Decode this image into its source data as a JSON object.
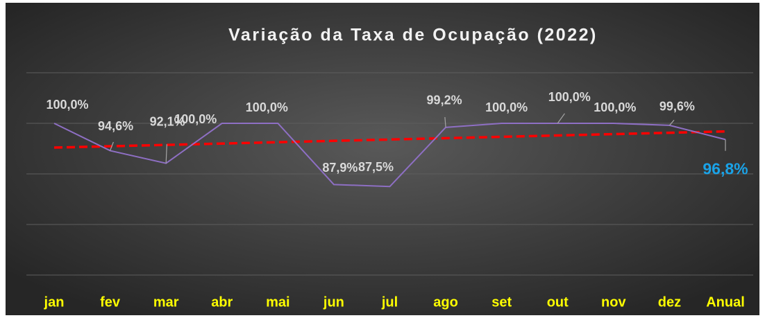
{
  "chart_data": {
    "type": "line",
    "title": "Variação da Taxa de Ocupação (2022)",
    "categories": [
      "jan",
      "fev",
      "mar",
      "abr",
      "mai",
      "jun",
      "jul",
      "ago",
      "set",
      "out",
      "nov",
      "dez",
      "Anual"
    ],
    "series": [
      {
        "name": "Taxa de Ocupação",
        "color": "#8e6fc4",
        "values": [
          100,
          94.6,
          92.1,
          100,
          100,
          87.9,
          87.5,
          99.2,
          100,
          100,
          100,
          99.6,
          96.8
        ],
        "value_labels": [
          "100,0%",
          "94,6%",
          "92,1%",
          "100,0%",
          "100,0%",
          "87,9%",
          "87,5%",
          "99,2%",
          "100,0%",
          "100,0%",
          "100,0%",
          "99,6%",
          "96,8%"
        ]
      }
    ],
    "trendline": {
      "color": "#ff0000",
      "start": 95.2,
      "end": 98.4
    },
    "ylim": [
      70,
      110
    ],
    "yticks": [
      70,
      80,
      90,
      100,
      110
    ],
    "grid": true,
    "category_color": "#ffff00",
    "highlight_color": "#1aa3e8"
  }
}
